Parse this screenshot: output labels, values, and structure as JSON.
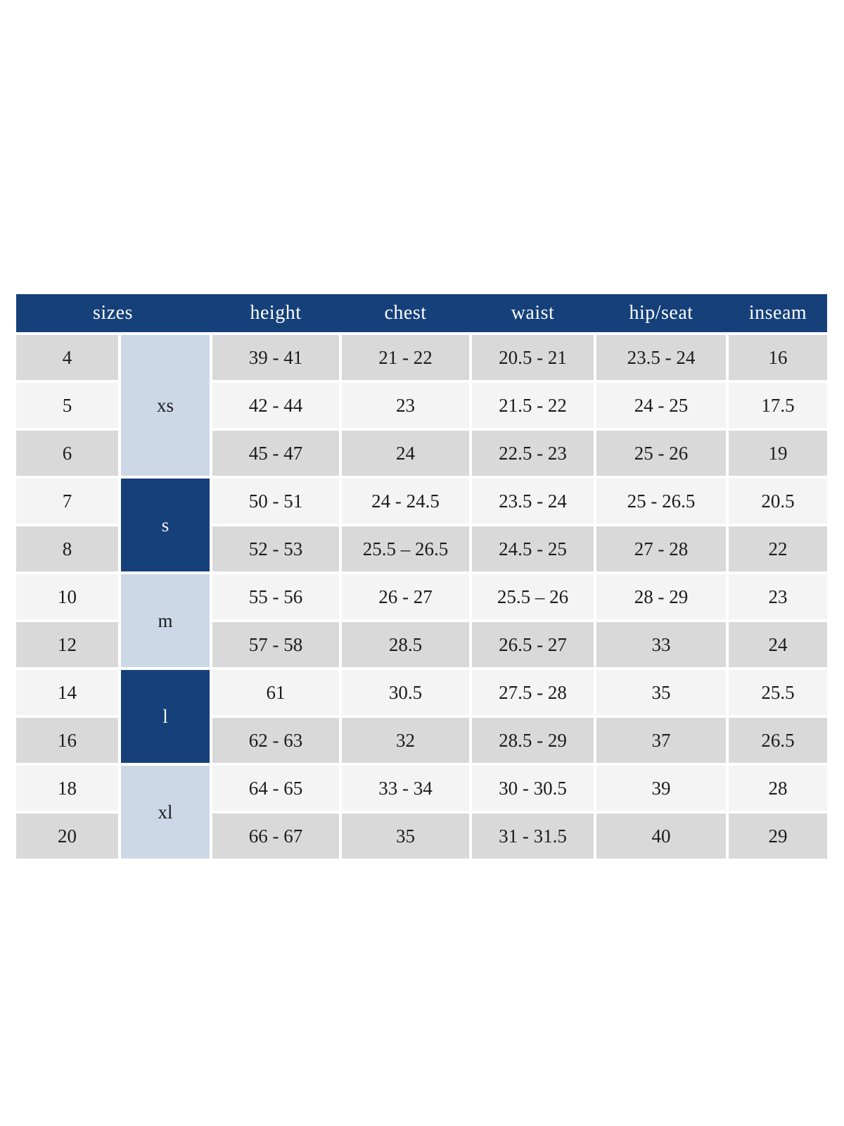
{
  "size_chart": {
    "columns": [
      {
        "key": "sizes",
        "label": "sizes"
      },
      {
        "key": "height",
        "label": "height"
      },
      {
        "key": "chest",
        "label": "chest"
      },
      {
        "key": "waist",
        "label": "waist"
      },
      {
        "key": "hip_seat",
        "label": "hip/seat"
      },
      {
        "key": "inseam",
        "label": "inseam"
      }
    ],
    "groups": [
      {
        "letter": "xs",
        "shade": "lightblue",
        "rows": [
          {
            "size": "4",
            "height": "39 - 41",
            "chest": "21 - 22",
            "waist": "20.5 - 21",
            "hip_seat": "23.5 - 24",
            "inseam": "16"
          },
          {
            "size": "5",
            "height": "42 - 44",
            "chest": "23",
            "waist": "21.5 - 22",
            "hip_seat": "24 - 25",
            "inseam": "17.5"
          },
          {
            "size": "6",
            "height": "45 - 47",
            "chest": "24",
            "waist": "22.5 - 23",
            "hip_seat": "25 - 26",
            "inseam": "19"
          }
        ]
      },
      {
        "letter": "s",
        "shade": "navy",
        "rows": [
          {
            "size": "7",
            "height": "50 - 51",
            "chest": "24 - 24.5",
            "waist": "23.5 - 24",
            "hip_seat": "25 - 26.5",
            "inseam": "20.5"
          },
          {
            "size": "8",
            "height": "52 - 53",
            "chest": "25.5 – 26.5",
            "waist": "24.5 - 25",
            "hip_seat": "27 - 28",
            "inseam": "22"
          }
        ]
      },
      {
        "letter": "m",
        "shade": "lightblue",
        "rows": [
          {
            "size": "10",
            "height": "55 - 56",
            "chest": "26 - 27",
            "waist": "25.5 – 26",
            "hip_seat": "28 - 29",
            "inseam": "23"
          },
          {
            "size": "12",
            "height": "57 - 58",
            "chest": "28.5",
            "waist": "26.5 - 27",
            "hip_seat": "33",
            "inseam": "24"
          }
        ]
      },
      {
        "letter": "l",
        "shade": "navy",
        "rows": [
          {
            "size": "14",
            "height": "61",
            "chest": "30.5",
            "waist": "27.5 - 28",
            "hip_seat": "35",
            "inseam": "25.5"
          },
          {
            "size": "16",
            "height": "62 - 63",
            "chest": "32",
            "waist": "28.5 - 29",
            "hip_seat": "37",
            "inseam": "26.5"
          }
        ]
      },
      {
        "letter": "xl",
        "shade": "lightblue",
        "rows": [
          {
            "size": "18",
            "height": "64 - 65",
            "chest": "33 - 34",
            "waist": "30 - 30.5",
            "hip_seat": "39",
            "inseam": "28"
          },
          {
            "size": "20",
            "height": "66 - 67",
            "chest": "35",
            "waist": "31 - 31.5",
            "hip_seat": "40",
            "inseam": "29"
          }
        ]
      }
    ],
    "colors": {
      "navy": "#15407a",
      "light_blue": "#cdd8e7",
      "row_gray": "#d9d9d9",
      "row_light": "#f4f4f4",
      "header_text": "#ffffff",
      "cell_text": "#1c1c1c",
      "page_background": "#ffffff"
    }
  }
}
